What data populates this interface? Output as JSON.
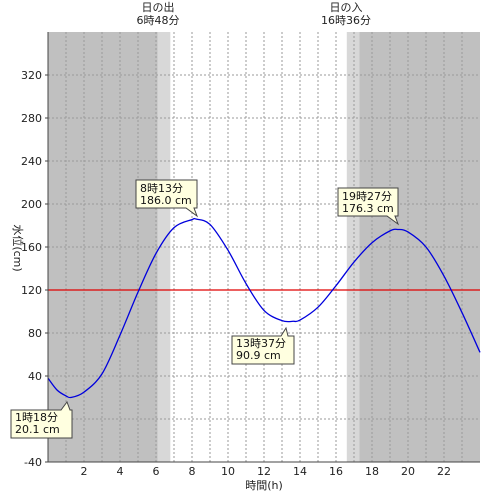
{
  "chart_data": {
    "type": "line",
    "xlabel": "時間(h)",
    "ylabel": "水位(cm)",
    "xlim": [
      0,
      24
    ],
    "ylim": [
      -40,
      360
    ],
    "x_ticks": [
      2,
      4,
      6,
      8,
      10,
      12,
      14,
      16,
      18,
      20,
      22
    ],
    "y_ticks": [
      -40,
      0,
      40,
      80,
      120,
      160,
      200,
      240,
      280,
      320
    ],
    "reference_line": {
      "value": 120,
      "color": "#e00000"
    },
    "series": [
      {
        "color": "#0000dd",
        "x": [
          0,
          0.5,
          1,
          1.3,
          2,
          3,
          4,
          5,
          6,
          7,
          8,
          8.22,
          9,
          10,
          11,
          12,
          13,
          13.62,
          14,
          15,
          16,
          17,
          18,
          19,
          19.45,
          20,
          21,
          22,
          23,
          24
        ],
        "y": [
          38,
          27,
          21.5,
          20.1,
          25,
          42,
          78,
          118,
          154,
          178,
          185.5,
          186.0,
          181,
          157,
          126,
          101,
          91.5,
          90.9,
          92,
          104,
          124,
          146,
          164,
          175,
          176.3,
          174,
          160,
          133,
          99,
          62
        ]
      }
    ],
    "annotations": [
      {
        "id": "high1",
        "time": "8時13分",
        "level": "186.0 cm",
        "x": 8.22,
        "y": 186.0
      },
      {
        "id": "low2",
        "time": "13時37分",
        "level": "90.9 cm",
        "x": 13.62,
        "y": 90.9
      },
      {
        "id": "high2",
        "time": "19時27分",
        "level": "176.3 cm",
        "x": 19.45,
        "y": 176.3
      },
      {
        "id": "low1",
        "time": "1時18分",
        "level": "20.1 cm",
        "x": 1.3,
        "y": 20.1
      }
    ],
    "sunrise": {
      "label": "日の出",
      "time": "6時48分",
      "hour": 6.8
    },
    "sunset": {
      "label": "日の入",
      "time": "16時36分",
      "hour": 16.6
    },
    "night_color": "#c0c0c0",
    "twilight_color": "#d8d8d8",
    "day_color": "#ffffff"
  }
}
